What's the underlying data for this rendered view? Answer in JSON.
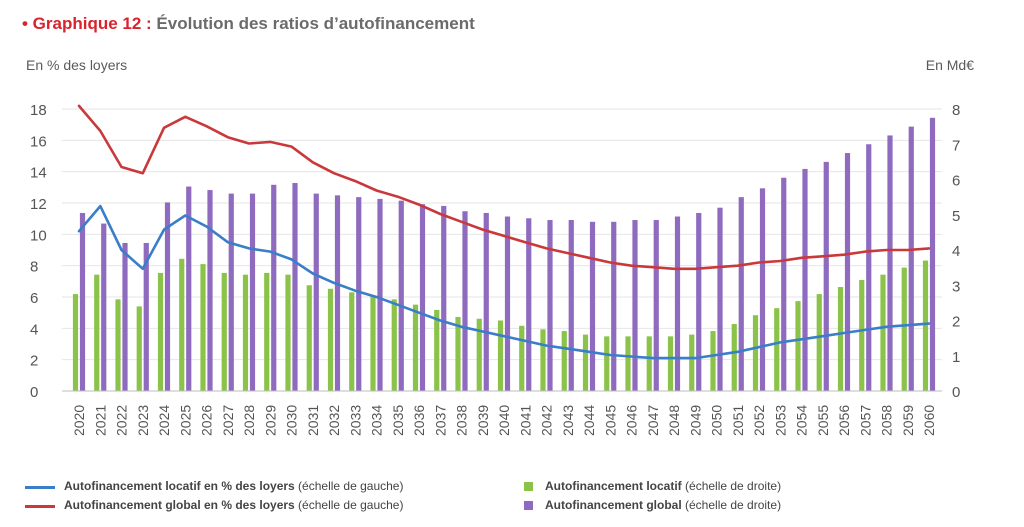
{
  "title": {
    "prefix": "• Graphique 12 :",
    "text": " Évolution des ratios d’autofinancement"
  },
  "chart_data": {
    "type": "bar+line",
    "ylabel_left": "En % des loyers",
    "ylabel_right": "En Md€",
    "ylim_left": [
      0,
      18
    ],
    "ylim_right": [
      0,
      8
    ],
    "yticks_left": [
      "0",
      "2",
      "4",
      "6",
      "8",
      "10",
      "12",
      "14",
      "16",
      "18"
    ],
    "yticks_right": [
      "0",
      "1",
      "2",
      "3",
      "4",
      "5",
      "6",
      "7",
      "8"
    ],
    "categories": [
      "2020",
      "2021",
      "2022",
      "2023",
      "2024",
      "2025",
      "2026",
      "2027",
      "2028",
      "2029",
      "2030",
      "2031",
      "2032",
      "2033",
      "2034",
      "2035",
      "2036",
      "2037",
      "2038",
      "2039",
      "2040",
      "2041",
      "2042",
      "2043",
      "2044",
      "2045",
      "2046",
      "2047",
      "2048",
      "2049",
      "2050",
      "2051",
      "2052",
      "2053",
      "2054",
      "2055",
      "2056",
      "2057",
      "2058",
      "2059",
      "2060"
    ],
    "bars": [
      {
        "legend_bold": "Autofinancement locatif",
        "legend_rest": " (échelle de droite)",
        "axis": "right",
        "color": "#8bc34a",
        "values": [
          2.75,
          3.3,
          2.6,
          2.4,
          3.35,
          3.75,
          3.6,
          3.35,
          3.3,
          3.35,
          3.3,
          3.0,
          2.9,
          2.8,
          2.7,
          2.6,
          2.45,
          2.3,
          2.1,
          2.05,
          2.0,
          1.85,
          1.75,
          1.7,
          1.6,
          1.55,
          1.55,
          1.55,
          1.55,
          1.6,
          1.7,
          1.9,
          2.15,
          2.35,
          2.55,
          2.75,
          2.95,
          3.15,
          3.3,
          3.5,
          3.7
        ]
      },
      {
        "legend_bold": "Autofinancement global",
        "legend_rest": " (échelle de droite)",
        "axis": "right",
        "color": "#8e6bbf",
        "values": [
          5.05,
          4.75,
          4.2,
          4.2,
          5.35,
          5.8,
          5.7,
          5.6,
          5.6,
          5.85,
          5.9,
          5.6,
          5.55,
          5.5,
          5.45,
          5.4,
          5.3,
          5.25,
          5.1,
          5.05,
          4.95,
          4.9,
          4.85,
          4.85,
          4.8,
          4.8,
          4.85,
          4.85,
          4.95,
          5.05,
          5.2,
          5.5,
          5.75,
          6.05,
          6.3,
          6.5,
          6.75,
          7.0,
          7.25,
          7.5,
          7.75
        ]
      }
    ],
    "lines": [
      {
        "legend_bold": "Autofinancement locatif en  % des loyers",
        "legend_rest": " (échelle de gauche)",
        "axis": "left",
        "color": "#3a7dc9",
        "values": [
          10.2,
          11.8,
          9.0,
          7.8,
          10.3,
          11.2,
          10.5,
          9.5,
          9.1,
          8.9,
          8.4,
          7.5,
          6.9,
          6.4,
          6.0,
          5.5,
          5.0,
          4.5,
          4.1,
          3.8,
          3.5,
          3.2,
          2.9,
          2.7,
          2.5,
          2.3,
          2.2,
          2.1,
          2.1,
          2.1,
          2.3,
          2.5,
          2.8,
          3.1,
          3.3,
          3.5,
          3.7,
          3.9,
          4.1,
          4.2,
          4.3
        ]
      },
      {
        "legend_bold": "Autofinancement global en  % des loyers",
        "legend_rest": " (échelle de gauche)",
        "axis": "left",
        "color": "#c9393b",
        "values": [
          18.2,
          16.6,
          14.3,
          13.9,
          16.8,
          17.5,
          16.9,
          16.2,
          15.8,
          15.9,
          15.6,
          14.6,
          13.9,
          13.4,
          12.8,
          12.4,
          11.9,
          11.3,
          10.8,
          10.3,
          9.9,
          9.5,
          9.1,
          8.8,
          8.5,
          8.2,
          8.0,
          7.9,
          7.8,
          7.8,
          7.9,
          8.0,
          8.2,
          8.3,
          8.5,
          8.6,
          8.7,
          8.9,
          9.0,
          9.0,
          9.1
        ]
      }
    ]
  }
}
